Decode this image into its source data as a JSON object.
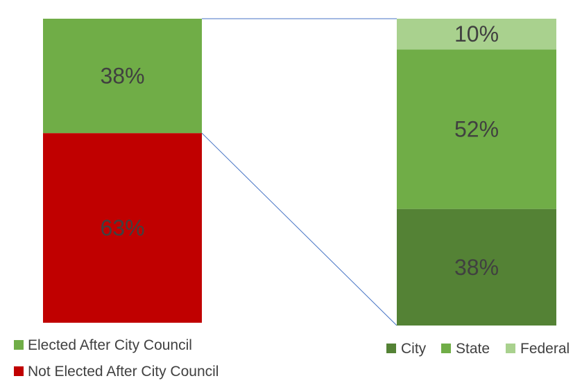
{
  "chart_data": [
    {
      "type": "bar",
      "stacked": true,
      "orientation": "vertical",
      "series": [
        {
          "name": "Not Elected After City Council",
          "value": 63,
          "label": "63%",
          "color": "#c00000"
        },
        {
          "name": "Elected After City Council",
          "value": 38,
          "label": "38%",
          "color": "#70ad47"
        }
      ],
      "legend_position": "bottom-left"
    },
    {
      "type": "bar",
      "stacked": true,
      "orientation": "vertical",
      "series": [
        {
          "name": "City",
          "value": 38,
          "label": "38%",
          "color": "#548235"
        },
        {
          "name": "State",
          "value": 52,
          "label": "52%",
          "color": "#70ad47"
        },
        {
          "name": "Federal",
          "value": 10,
          "label": "10%",
          "color": "#a9d18e"
        }
      ],
      "legend_position": "bottom"
    }
  ],
  "connector_color": "#4472c4"
}
